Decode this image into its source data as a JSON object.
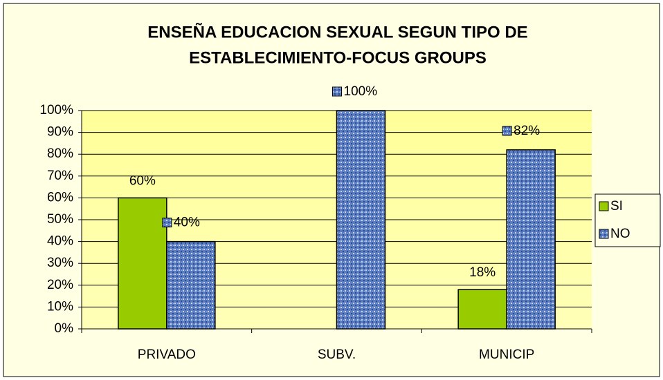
{
  "chart_data": {
    "type": "bar",
    "title": [
      "ENSEÑA EDUCACION SEXUAL SEGUN TIPO DE",
      "ESTABLECIMIENTO-FOCUS GROUPS"
    ],
    "categories": [
      "PRIVADO",
      "SUBV.",
      "MUNICIP"
    ],
    "series": [
      {
        "name": "SI",
        "color": "#99cc00",
        "values": [
          60,
          null,
          18
        ],
        "value_labels": [
          "60%",
          null,
          "18%"
        ]
      },
      {
        "name": "NO",
        "color": "#5a7cc0",
        "values": [
          40,
          100,
          82
        ],
        "value_labels": [
          "40%",
          "100%",
          "82%"
        ]
      }
    ],
    "ylim": [
      0,
      100
    ],
    "yticks": [
      {
        "value": 0,
        "label": "0%"
      },
      {
        "value": 10,
        "label": "10%"
      },
      {
        "value": 20,
        "label": "20%"
      },
      {
        "value": 30,
        "label": "30%"
      },
      {
        "value": 40,
        "label": "40%"
      },
      {
        "value": 50,
        "label": "50%"
      },
      {
        "value": 60,
        "label": "60%"
      },
      {
        "value": 70,
        "label": "70%"
      },
      {
        "value": 80,
        "label": "80%"
      },
      {
        "value": 90,
        "label": "90%"
      },
      {
        "value": 100,
        "label": "100%"
      }
    ],
    "grid": true,
    "legend": "right"
  }
}
